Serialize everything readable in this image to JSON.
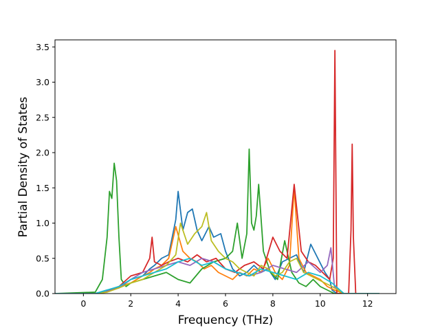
{
  "chart_data": {
    "type": "line",
    "title": "",
    "xlabel": "Frequency (THz)",
    "ylabel": "Partial Density of States",
    "xlim": [
      -1.2,
      13.2
    ],
    "ylim": [
      0.0,
      3.6
    ],
    "xticks": [
      0,
      2,
      4,
      6,
      8,
      10,
      12
    ],
    "yticks": [
      0.0,
      0.5,
      1.0,
      1.5,
      2.0,
      2.5,
      3.0,
      3.5
    ],
    "xtick_labels": [
      "0",
      "2",
      "4",
      "6",
      "8",
      "10",
      "12"
    ],
    "ytick_labels": [
      "0.0",
      "0.5",
      "1.0",
      "1.5",
      "2.0",
      "2.5",
      "3.0",
      "3.5"
    ],
    "grid": false,
    "legend": "none",
    "series": [
      {
        "color": "#1f77b4",
        "x": [
          -1.2,
          0.5,
          1.0,
          1.5,
          2.0,
          2.5,
          2.8,
          3.0,
          3.3,
          3.6,
          3.9,
          4.0,
          4.2,
          4.4,
          4.6,
          4.8,
          5.0,
          5.3,
          5.5,
          5.8,
          6.0,
          6.3,
          6.6,
          6.9,
          7.2,
          7.5,
          7.8,
          8.1,
          8.4,
          8.7,
          9.0,
          9.3,
          9.6,
          9.9,
          10.2,
          10.4,
          10.5,
          10.7,
          11.0,
          12.5
        ],
        "values": [
          0.0,
          0.0,
          0.05,
          0.08,
          0.2,
          0.25,
          0.35,
          0.4,
          0.5,
          0.55,
          1.05,
          1.45,
          0.9,
          1.15,
          1.2,
          0.9,
          0.75,
          0.95,
          0.8,
          0.85,
          0.6,
          0.35,
          0.25,
          0.3,
          0.4,
          0.3,
          0.35,
          0.2,
          0.45,
          0.5,
          0.55,
          0.3,
          0.7,
          0.5,
          0.3,
          0.2,
          0.05,
          0.0,
          0.0,
          0.0
        ]
      },
      {
        "color": "#ff7f0e",
        "x": [
          -1.2,
          0.5,
          1.0,
          1.5,
          2.0,
          2.5,
          2.8,
          3.0,
          3.3,
          3.6,
          3.9,
          4.2,
          4.5,
          4.8,
          5.1,
          5.4,
          5.7,
          6.0,
          6.3,
          6.6,
          6.9,
          7.2,
          7.5,
          7.8,
          8.1,
          8.4,
          8.7,
          8.9,
          9.1,
          9.4,
          9.7,
          10.0,
          10.3,
          10.6,
          11.0,
          12.5
        ],
        "values": [
          0.0,
          0.0,
          0.03,
          0.1,
          0.15,
          0.25,
          0.3,
          0.35,
          0.4,
          0.5,
          0.95,
          0.6,
          0.5,
          0.45,
          0.35,
          0.4,
          0.3,
          0.25,
          0.2,
          0.3,
          0.25,
          0.35,
          0.3,
          0.5,
          0.3,
          0.2,
          0.4,
          1.5,
          0.5,
          0.3,
          0.25,
          0.2,
          0.1,
          0.05,
          0.0,
          0.0
        ]
      },
      {
        "color": "#2ca02c",
        "x": [
          -1.2,
          0.5,
          0.8,
          1.0,
          1.1,
          1.2,
          1.3,
          1.4,
          1.5,
          1.6,
          1.8,
          2.0,
          2.5,
          3.0,
          3.5,
          4.0,
          4.5,
          5.0,
          5.5,
          6.0,
          6.3,
          6.5,
          6.7,
          6.9,
          7.0,
          7.1,
          7.2,
          7.3,
          7.4,
          7.6,
          7.9,
          8.2,
          8.5,
          8.8,
          9.1,
          9.4,
          9.7,
          10.0,
          10.3,
          10.6,
          11.0,
          12.5
        ],
        "values": [
          0.0,
          0.02,
          0.2,
          0.8,
          1.45,
          1.35,
          1.85,
          1.6,
          0.8,
          0.2,
          0.1,
          0.15,
          0.2,
          0.25,
          0.3,
          0.2,
          0.15,
          0.35,
          0.45,
          0.5,
          0.6,
          1.0,
          0.5,
          0.85,
          2.05,
          1.0,
          0.9,
          1.1,
          1.55,
          0.6,
          0.3,
          0.2,
          0.75,
          0.3,
          0.15,
          0.1,
          0.2,
          0.1,
          0.05,
          0.0,
          0.0,
          0.0
        ]
      },
      {
        "color": "#d62728",
        "x": [
          -1.2,
          0.5,
          1.0,
          1.5,
          2.0,
          2.5,
          2.8,
          2.9,
          3.0,
          3.3,
          3.6,
          4.0,
          4.4,
          4.8,
          5.2,
          5.6,
          6.0,
          6.4,
          6.8,
          7.2,
          7.6,
          8.0,
          8.3,
          8.6,
          8.9,
          9.2,
          9.5,
          9.8,
          10.1,
          10.4,
          10.55,
          10.62,
          10.7,
          10.9,
          11.2,
          11.3,
          11.35,
          11.4,
          11.5,
          12.5
        ],
        "values": [
          0.0,
          0.0,
          0.04,
          0.1,
          0.25,
          0.3,
          0.5,
          0.8,
          0.45,
          0.4,
          0.45,
          0.5,
          0.45,
          0.55,
          0.45,
          0.5,
          0.35,
          0.3,
          0.4,
          0.45,
          0.35,
          0.8,
          0.6,
          0.5,
          1.55,
          0.6,
          0.45,
          0.4,
          0.3,
          0.2,
          0.5,
          3.45,
          0.0,
          0.0,
          0.0,
          0.9,
          2.12,
          0.8,
          0.0,
          0.0
        ]
      },
      {
        "color": "#9467bd",
        "x": [
          -1.2,
          0.5,
          1.0,
          1.5,
          2.0,
          2.5,
          3.0,
          3.5,
          4.0,
          4.5,
          5.0,
          5.5,
          6.0,
          6.5,
          7.0,
          7.5,
          8.0,
          8.5,
          9.0,
          9.5,
          10.0,
          10.3,
          10.45,
          10.6,
          11.0,
          12.5
        ],
        "values": [
          0.0,
          0.0,
          0.03,
          0.08,
          0.2,
          0.3,
          0.35,
          0.4,
          0.45,
          0.4,
          0.5,
          0.45,
          0.35,
          0.3,
          0.25,
          0.3,
          0.4,
          0.35,
          0.3,
          0.45,
          0.3,
          0.4,
          0.65,
          0.1,
          0.0,
          0.0
        ]
      },
      {
        "color": "#bcbd22",
        "x": [
          -1.2,
          0.5,
          1.0,
          1.5,
          2.0,
          2.5,
          3.0,
          3.5,
          3.9,
          4.1,
          4.4,
          4.7,
          5.0,
          5.2,
          5.4,
          5.7,
          6.0,
          6.3,
          6.6,
          6.9,
          7.2,
          7.5,
          7.8,
          8.1,
          8.4,
          8.7,
          9.0,
          9.3,
          9.6,
          9.9,
          10.2,
          10.5,
          11.0,
          12.5
        ],
        "values": [
          0.0,
          0.0,
          0.02,
          0.08,
          0.15,
          0.2,
          0.3,
          0.4,
          0.55,
          1.0,
          0.7,
          0.85,
          0.95,
          1.15,
          0.75,
          0.6,
          0.5,
          0.45,
          0.35,
          0.3,
          0.25,
          0.4,
          0.35,
          0.25,
          0.3,
          0.45,
          0.5,
          0.3,
          0.25,
          0.2,
          0.15,
          0.1,
          0.0,
          0.0
        ]
      },
      {
        "color": "#17becf",
        "x": [
          -1.2,
          0.5,
          1.0,
          1.5,
          2.0,
          2.5,
          3.0,
          3.5,
          4.0,
          4.5,
          5.0,
          5.5,
          6.0,
          6.5,
          7.0,
          7.5,
          8.0,
          8.5,
          9.0,
          9.5,
          10.0,
          10.5,
          11.0,
          12.5
        ],
        "values": [
          0.0,
          0.0,
          0.05,
          0.1,
          0.2,
          0.25,
          0.3,
          0.35,
          0.45,
          0.5,
          0.4,
          0.45,
          0.35,
          0.3,
          0.25,
          0.35,
          0.3,
          0.25,
          0.2,
          0.3,
          0.25,
          0.15,
          0.0,
          0.0
        ]
      }
    ]
  }
}
